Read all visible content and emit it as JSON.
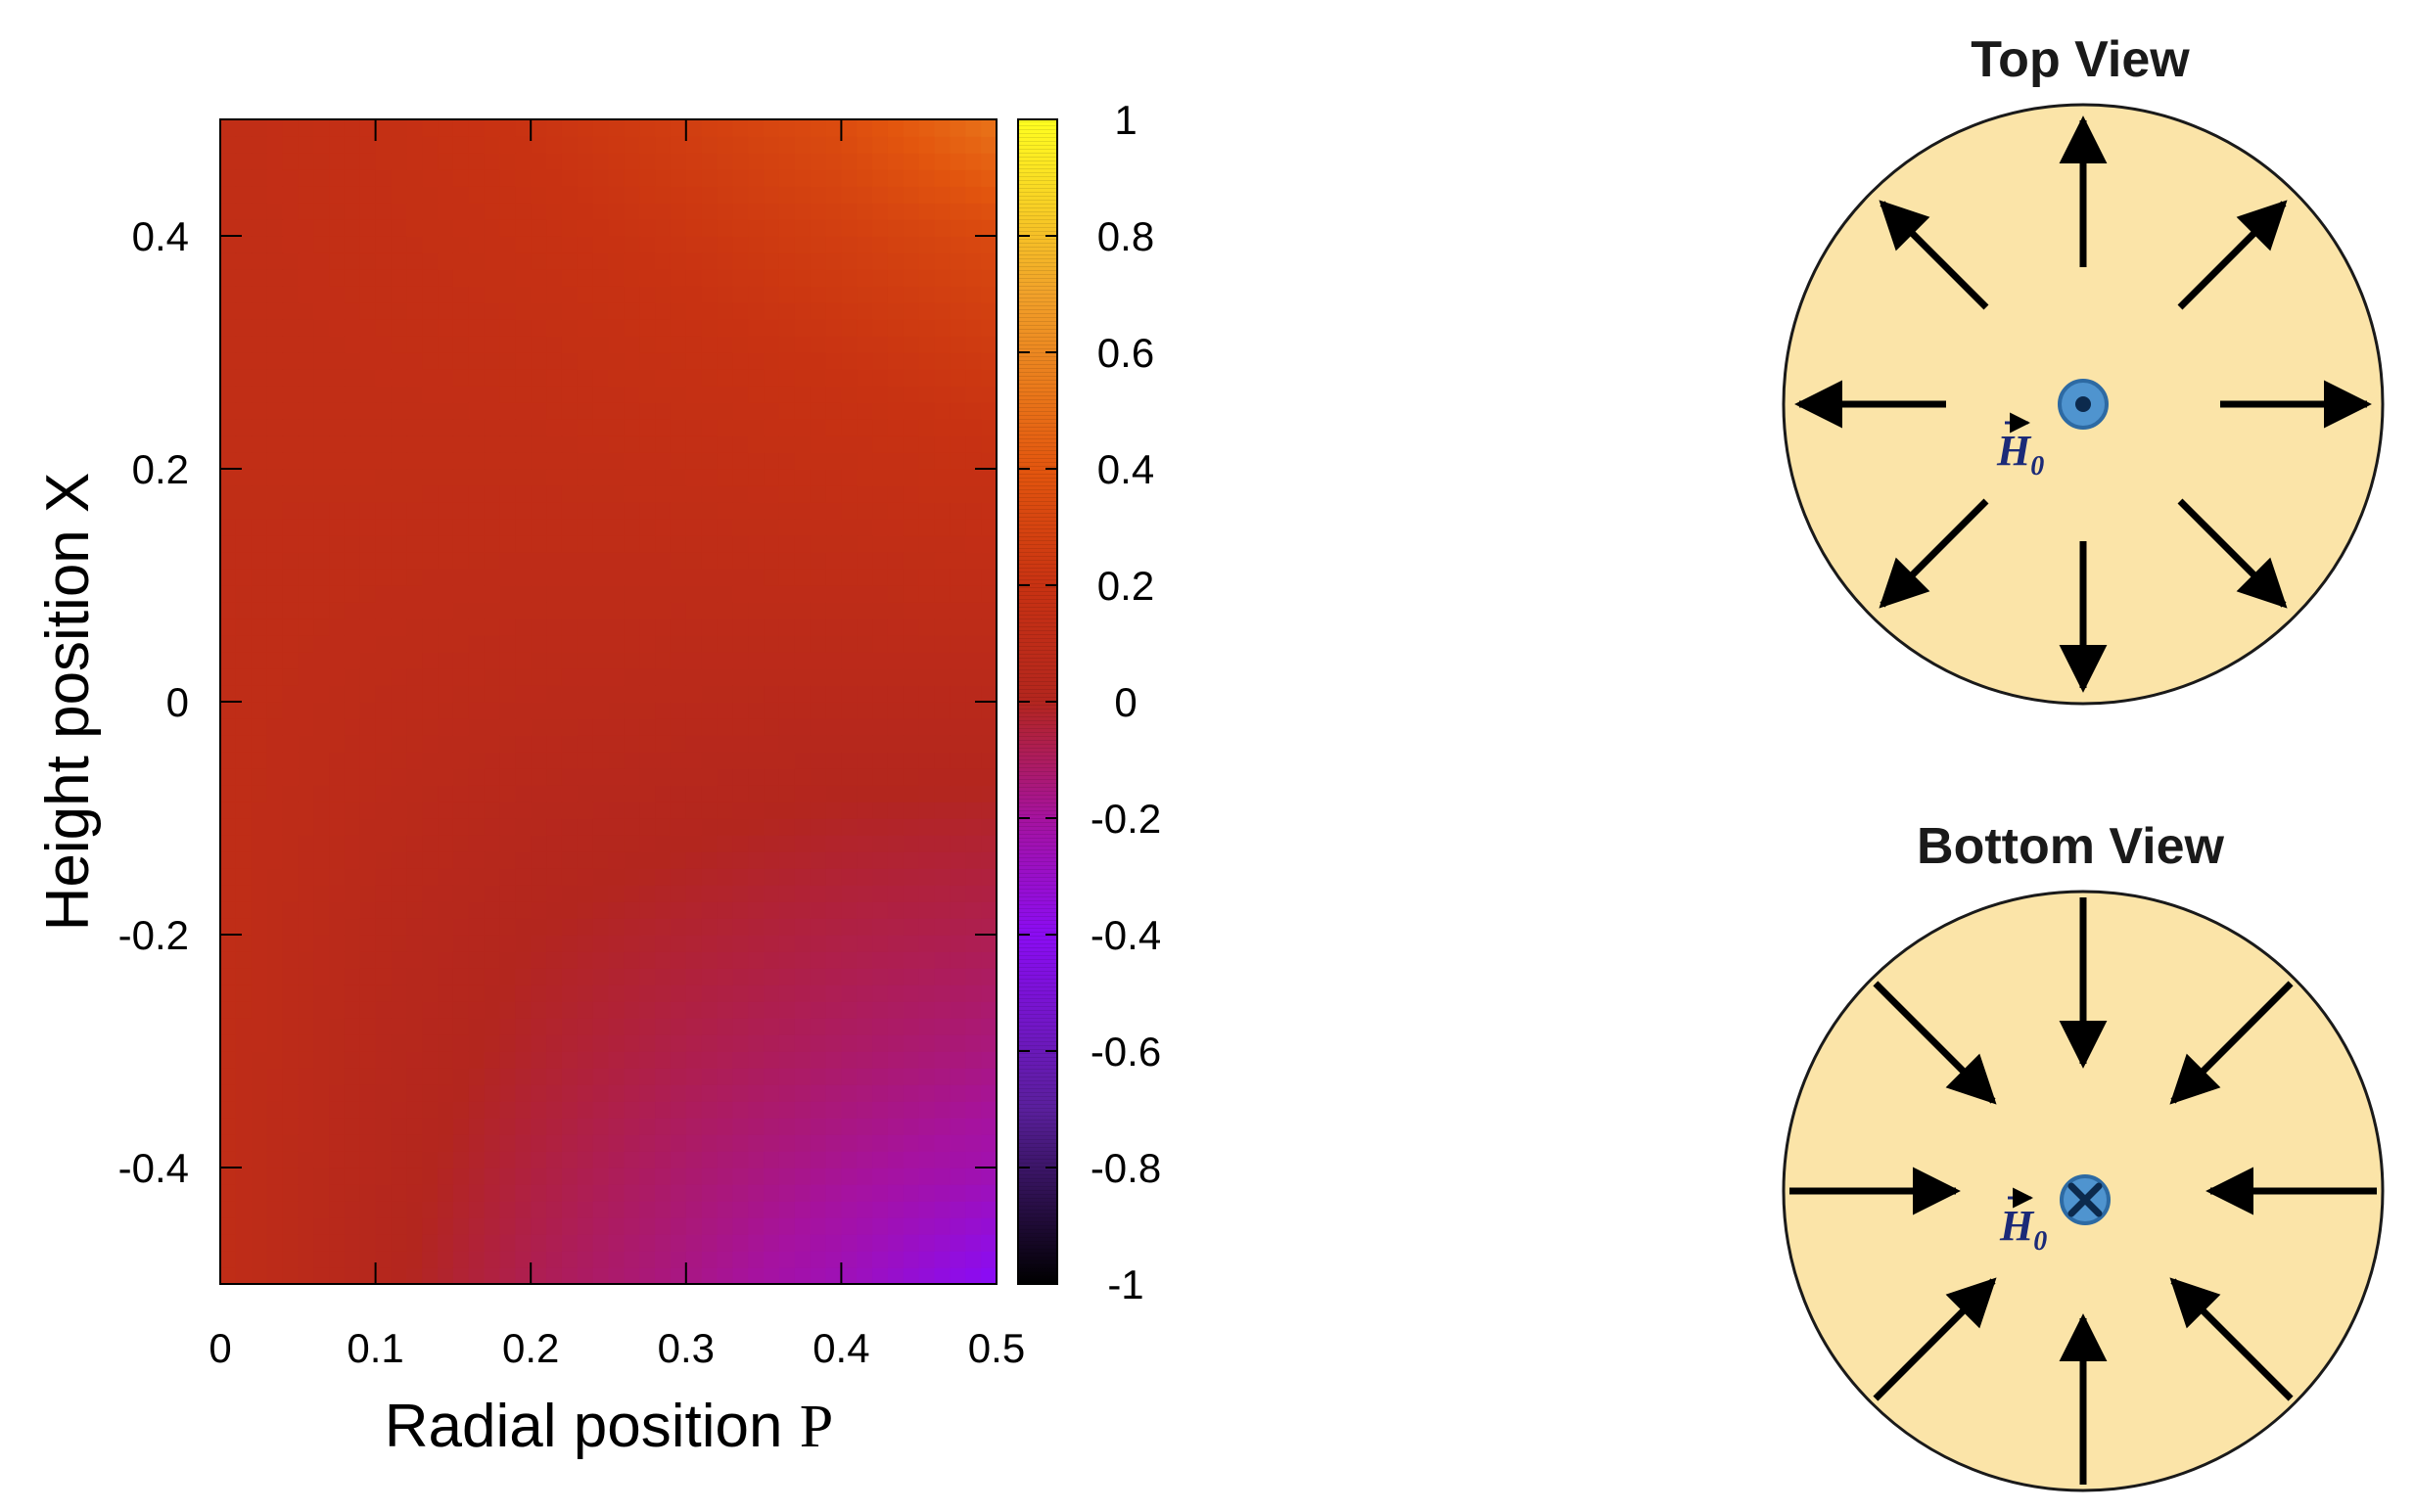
{
  "chart_data": [
    {
      "type": "heatmap",
      "title": "",
      "xlabel": "Radial position",
      "xlabel_symbol": "P",
      "ylabel": "Height position X",
      "xlim": [
        0,
        0.5
      ],
      "ylim": [
        -0.5,
        0.5
      ],
      "x_ticks": [
        "0",
        "0.1",
        "0.2",
        "0.3",
        "0.4",
        "0.5"
      ],
      "y_ticks": [
        "-0.4",
        "-0.2",
        "0",
        "0.2",
        "0.4"
      ],
      "x_tick_values": [
        0,
        0.1,
        0.2,
        0.3,
        0.4,
        0.5
      ],
      "y_tick_values": [
        -0.4,
        -0.2,
        0,
        0.2,
        0.4
      ],
      "colorbar": {
        "range": [
          -1,
          1
        ],
        "ticks": [
          "-1",
          "-0.8",
          "-0.6",
          "-0.4",
          "-0.2",
          "0",
          "0.2",
          "0.4",
          "0.6",
          "0.8",
          "1"
        ],
        "tick_values": [
          -1,
          -0.8,
          -0.6,
          -0.4,
          -0.2,
          0,
          0.2,
          0.4,
          0.6,
          0.8,
          1
        ],
        "colormap": [
          {
            "value": -1.0,
            "color": "#000000"
          },
          {
            "value": -0.7,
            "color": "#5a1f9c"
          },
          {
            "value": -0.4,
            "color": "#8b0cf3"
          },
          {
            "value": -0.2,
            "color": "#a6129f"
          },
          {
            "value": 0.0,
            "color": "#b3261e"
          },
          {
            "value": 0.2,
            "color": "#c83212"
          },
          {
            "value": 0.4,
            "color": "#e3560e"
          },
          {
            "value": 0.7,
            "color": "#f1a12a"
          },
          {
            "value": 1.0,
            "color": "#ffff20"
          }
        ]
      },
      "field_values": {
        "x": [
          0,
          0.1,
          0.2,
          0.3,
          0.4,
          0.5
        ],
        "y": [
          -0.5,
          -0.4,
          -0.3,
          -0.2,
          -0.1,
          0,
          0.1,
          0.2,
          0.3,
          0.4,
          0.5
        ],
        "z": [
          [
            0.12,
            0.02,
            -0.08,
            -0.16,
            -0.26,
            -0.42
          ],
          [
            0.12,
            0.03,
            -0.05,
            -0.12,
            -0.18,
            -0.24
          ],
          [
            0.12,
            0.04,
            -0.02,
            -0.07,
            -0.11,
            -0.15
          ],
          [
            0.12,
            0.05,
            0.0,
            -0.03,
            -0.06,
            -0.08
          ],
          [
            0.12,
            0.07,
            0.03,
            0.01,
            -0.01,
            -0.02
          ],
          [
            0.12,
            0.09,
            0.07,
            0.06,
            0.05,
            0.05
          ],
          [
            0.12,
            0.11,
            0.1,
            0.1,
            0.11,
            0.12
          ],
          [
            0.13,
            0.13,
            0.13,
            0.14,
            0.16,
            0.18
          ],
          [
            0.13,
            0.14,
            0.15,
            0.18,
            0.21,
            0.25
          ],
          [
            0.13,
            0.15,
            0.18,
            0.22,
            0.27,
            0.33
          ],
          [
            0.13,
            0.16,
            0.21,
            0.27,
            0.35,
            0.52
          ]
        ]
      }
    },
    {
      "type": "diagram",
      "title": "Top View",
      "arrow_direction": "outward",
      "arrow_count": 8,
      "center_marker": "dot",
      "field_symbol": "H",
      "field_subscript": "0"
    },
    {
      "type": "diagram",
      "title": "Bottom View",
      "arrow_direction": "inward",
      "arrow_count": 8,
      "center_marker": "cross",
      "field_symbol": "H",
      "field_subscript": "0"
    }
  ],
  "colors": {
    "disk_fill": "#fbe4a8",
    "disk_stroke": "#1a1a1a",
    "arrow": "#000000",
    "marker_fill": "#4f94cf",
    "marker_stroke": "#2d6aa3",
    "marker_center": "#0c2a4d",
    "field_symbol": "#1b2a78"
  }
}
